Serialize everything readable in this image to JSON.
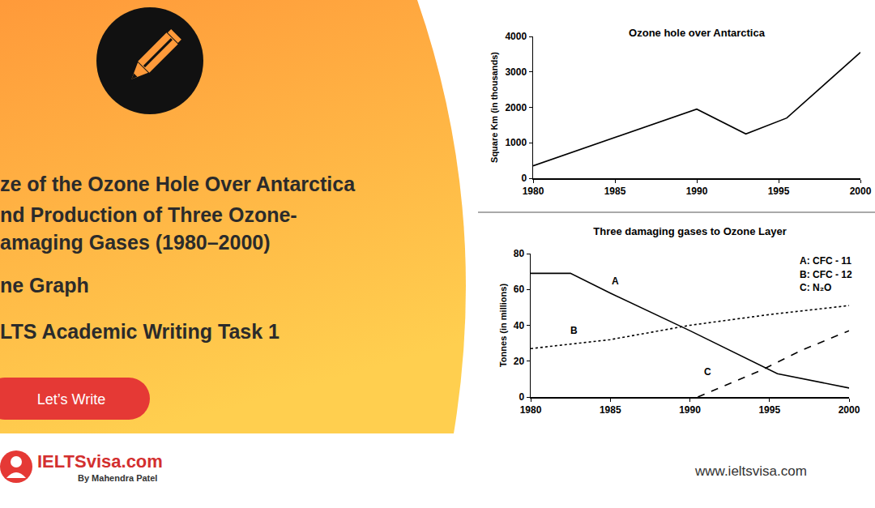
{
  "banner": {
    "title_lines": [
      "ze of the Ozone Hole Over Antarctica",
      "nd Production of Three Ozone-",
      "amaging Gases (1980–2000)"
    ],
    "chart_kind": "ne Graph",
    "task": "LTS Academic Writing Task 1",
    "button": "Let’s Write",
    "brand": "IELTSvisa.com",
    "byline": "By Mahendra Patel",
    "url": "www.ieltsvisa.com"
  },
  "chart_data": [
    {
      "type": "line",
      "title": "Ozone hole over Antarctica",
      "y_label": "Square Km (in thousands)",
      "series": [
        {
          "name": "Ozone hole",
          "color": "#000000",
          "line_style": "solid",
          "x": [
            1980,
            1990,
            1993,
            1995.5,
            2000
          ],
          "values": [
            350,
            1950,
            1250,
            1700,
            3550
          ]
        }
      ],
      "xlim": [
        1980,
        2000
      ],
      "xticks": [
        1980,
        1985,
        1990,
        1995,
        2000
      ],
      "ylim": [
        0,
        4000
      ],
      "yticks": [
        0,
        1000,
        2000,
        3000,
        4000
      ],
      "grid": false
    },
    {
      "type": "line",
      "title": "Three damaging gases to Ozone Layer",
      "y_label": "Tonnes (in millions)",
      "series": [
        {
          "name": "A: CFC - 11",
          "color": "#000000",
          "line_style": "solid",
          "x": [
            1980,
            1982.5,
            1985,
            1990,
            1995.5,
            2000
          ],
          "values": [
            69,
            69,
            58,
            37,
            13,
            5
          ]
        },
        {
          "name": "B: CFC - 12",
          "color": "#000000",
          "line_style": "dotted",
          "x": [
            1980,
            1985,
            1990,
            1995,
            2000
          ],
          "values": [
            27,
            32,
            40,
            46,
            51
          ]
        },
        {
          "name": "C: N₂O",
          "color": "#000000",
          "line_style": "dashed",
          "x": [
            1990.5,
            1994.5,
            1997,
            2000
          ],
          "values": [
            0,
            15,
            26,
            37
          ]
        }
      ],
      "annotations": [
        {
          "text": "A",
          "x": 1985.3,
          "y": 64.5
        },
        {
          "text": "B",
          "x": 1982.7,
          "y": 37
        },
        {
          "text": "C",
          "x": 1991.1,
          "y": 14
        }
      ],
      "legend": "upper right",
      "xlim": [
        1980,
        2000
      ],
      "xticks": [
        1980,
        1985,
        1990,
        1995,
        2000
      ],
      "ylim": [
        0,
        80
      ],
      "yticks": [
        0,
        20,
        40,
        60,
        80
      ],
      "grid": false
    }
  ]
}
